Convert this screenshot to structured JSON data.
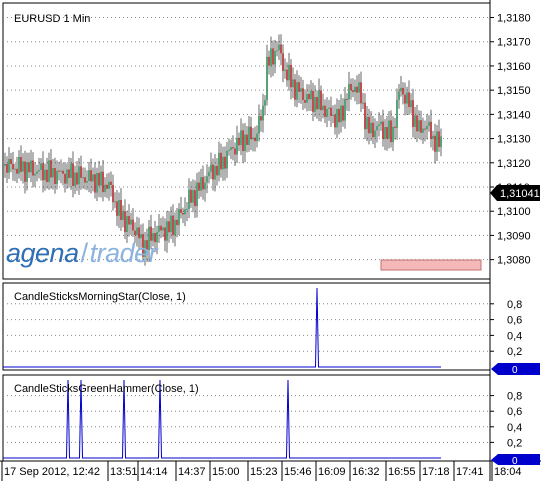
{
  "logo": {
    "part1": "agena",
    "separator": "/",
    "part2": "trader"
  },
  "current_price_label": "1,31041",
  "colors": {
    "up": "#2e8b57",
    "down": "#b22222",
    "indicator": "#0000cc",
    "badge": "#0000cc",
    "alert_box": "#f4b8b8"
  },
  "x_labels": [
    "17 Sep 2012, 12:42",
    "13:51",
    "14:14",
    "14:37",
    "15:00",
    "15:23",
    "15:46",
    "16:09",
    "16:32",
    "16:55",
    "17:18",
    "17:41",
    "18:04"
  ],
  "chart_data": [
    {
      "type": "candlestick",
      "title": "EURUSD 1 Min",
      "ylim": [
        1.3072,
        1.3186
      ],
      "yticks": [
        "1,3080",
        "1,3090",
        "1,3100",
        "1,3110",
        "1,3120",
        "1,3130",
        "1,3140",
        "1,3150",
        "1,3160",
        "1,3170",
        "1,3180"
      ],
      "ytick_values": [
        1.308,
        1.309,
        1.31,
        1.311,
        1.312,
        1.313,
        1.314,
        1.315,
        1.316,
        1.317,
        1.318
      ],
      "close_path": [
        [
          0,
          1.3119
        ],
        [
          20,
          1.3118
        ],
        [
          45,
          1.3116
        ],
        [
          70,
          1.3115
        ],
        [
          95,
          1.3113
        ],
        [
          110,
          1.311
        ],
        [
          118,
          1.31
        ],
        [
          128,
          1.3095
        ],
        [
          137,
          1.3092
        ],
        [
          142,
          1.3085
        ],
        [
          150,
          1.3089
        ],
        [
          160,
          1.3092
        ],
        [
          170,
          1.3093
        ],
        [
          180,
          1.3098
        ],
        [
          190,
          1.3105
        ],
        [
          200,
          1.311
        ],
        [
          210,
          1.3116
        ],
        [
          220,
          1.3119
        ],
        [
          232,
          1.3126
        ],
        [
          244,
          1.313
        ],
        [
          256,
          1.3131
        ],
        [
          263,
          1.3142
        ],
        [
          267,
          1.316
        ],
        [
          272,
          1.3164
        ],
        [
          278,
          1.3168
        ],
        [
          285,
          1.3158
        ],
        [
          295,
          1.3151
        ],
        [
          305,
          1.3147
        ],
        [
          318,
          1.3145
        ],
        [
          330,
          1.314
        ],
        [
          340,
          1.3138
        ],
        [
          347,
          1.3148
        ],
        [
          355,
          1.3152
        ],
        [
          361,
          1.3147
        ],
        [
          368,
          1.3133
        ],
        [
          380,
          1.3135
        ],
        [
          392,
          1.3131
        ],
        [
          400,
          1.3151
        ],
        [
          406,
          1.3147
        ],
        [
          413,
          1.314
        ],
        [
          419,
          1.3133
        ],
        [
          426,
          1.3136
        ],
        [
          433,
          1.313
        ],
        [
          442,
          1.3127
        ]
      ]
    },
    {
      "type": "line",
      "title": "CandleSticksMorningStar(Close, 1)",
      "ylim": [
        0,
        1
      ],
      "yticks": [
        "0,8",
        "0,6",
        "0,4",
        "0,2"
      ],
      "ytick_values": [
        0.8,
        0.6,
        0.4,
        0.2
      ],
      "current_value": "0",
      "spikes": [
        {
          "at": 317,
          "value": 1
        }
      ]
    },
    {
      "type": "line",
      "title": "CandleSticksGreenHammer(Close, 1)",
      "ylim": [
        0,
        1
      ],
      "yticks": [
        "0,8",
        "0,6",
        "0,4",
        "0,2"
      ],
      "ytick_values": [
        0.8,
        0.6,
        0.4,
        0.2
      ],
      "current_value": "0",
      "spikes": [
        {
          "at": 68,
          "value": 1
        },
        {
          "at": 81,
          "value": 1
        },
        {
          "at": 124,
          "value": 1
        },
        {
          "at": 160,
          "value": 1
        },
        {
          "at": 288,
          "value": 1
        }
      ]
    }
  ]
}
